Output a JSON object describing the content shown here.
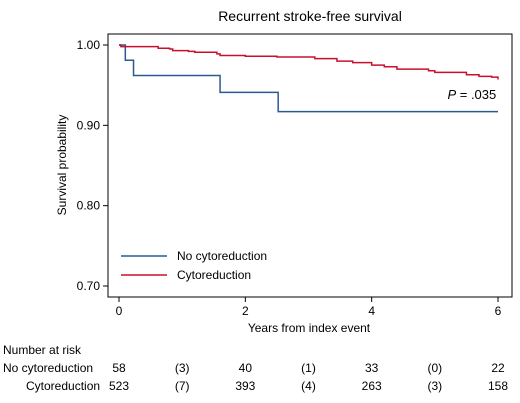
{
  "chart_data": {
    "type": "line",
    "title": "Recurrent stroke-free survival",
    "xlabel": "Years from index event",
    "ylabel": "Survival probability",
    "xlim": [
      0,
      6
    ],
    "ylim": [
      0.7,
      1.0
    ],
    "x_ticks": [
      0,
      2,
      4,
      6
    ],
    "x_tick_labels": [
      "0",
      "2",
      "4",
      "6"
    ],
    "y_ticks": [
      0.7,
      0.8,
      0.9,
      1.0
    ],
    "y_tick_labels": [
      "0.70",
      "0.80",
      "0.90",
      "1.00"
    ],
    "grid": false,
    "legend_position": "bottom-left",
    "annotation": {
      "italic": "P",
      "rest": " = .035",
      "x": 5.2,
      "y": 0.9325
    },
    "series": [
      {
        "name": "No cytoreduction",
        "color": "#2b5a93",
        "step": true,
        "points": [
          [
            0,
            1.0
          ],
          [
            0.1,
            1.0
          ],
          [
            0.1,
            0.981
          ],
          [
            0.23,
            0.981
          ],
          [
            0.23,
            0.962
          ],
          [
            1.6,
            0.962
          ],
          [
            1.6,
            0.941
          ],
          [
            2.52,
            0.941
          ],
          [
            2.52,
            0.917
          ],
          [
            6,
            0.917
          ]
        ]
      },
      {
        "name": "Cytoreduction",
        "color": "#c8102e",
        "step": true,
        "points": [
          [
            0,
            1.0
          ],
          [
            0.03,
            0.998
          ],
          [
            0.6,
            0.998
          ],
          [
            0.62,
            0.996
          ],
          [
            0.8,
            0.995
          ],
          [
            0.85,
            0.993
          ],
          [
            1.1,
            0.992
          ],
          [
            1.2,
            0.991
          ],
          [
            1.55,
            0.989
          ],
          [
            1.6,
            0.987
          ],
          [
            2.0,
            0.986
          ],
          [
            2.5,
            0.985
          ],
          [
            3.1,
            0.983
          ],
          [
            3.45,
            0.98
          ],
          [
            3.7,
            0.978
          ],
          [
            4.0,
            0.975
          ],
          [
            4.2,
            0.973
          ],
          [
            4.4,
            0.97
          ],
          [
            4.9,
            0.968
          ],
          [
            5.0,
            0.966
          ],
          [
            5.5,
            0.963
          ],
          [
            5.7,
            0.961
          ],
          [
            5.9,
            0.96
          ],
          [
            6.0,
            0.957
          ]
        ]
      }
    ],
    "risk_table": {
      "header": "Number at risk",
      "rows": [
        {
          "label": "No cytoreduction",
          "values": [
            "58",
            "(3)",
            "40",
            "(1)",
            "33",
            "(0)",
            "22"
          ]
        },
        {
          "label": "Cytoreduction",
          "values": [
            "523",
            "(7)",
            "393",
            "(4)",
            "263",
            "(3)",
            "158"
          ]
        }
      ],
      "columns_x": [
        0,
        1,
        2,
        3,
        4,
        5,
        6
      ]
    }
  }
}
